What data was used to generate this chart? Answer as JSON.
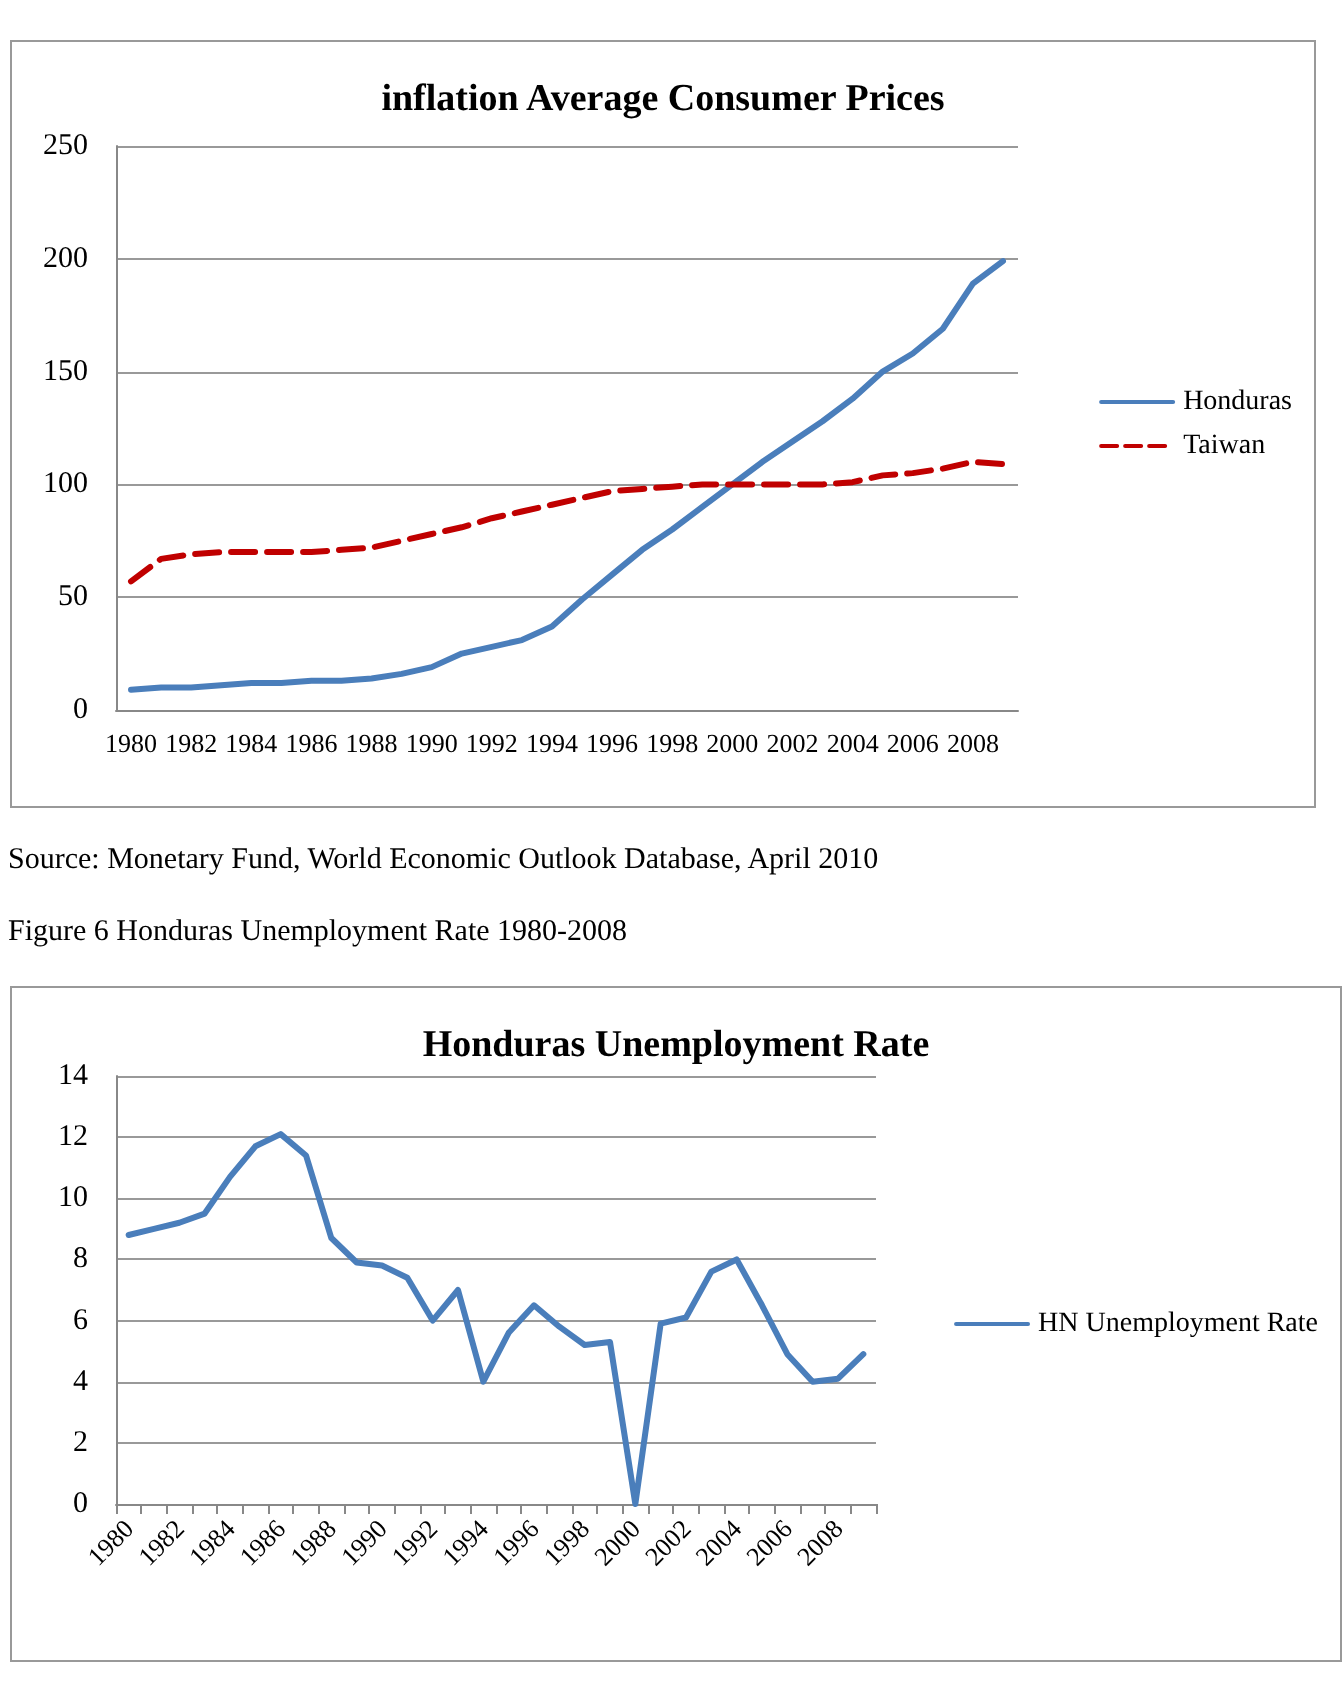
{
  "chart_data": [
    {
      "type": "line",
      "title": "inflation Average Consumer Prices",
      "categories": [
        "1980",
        null,
        "1982",
        null,
        "1984",
        null,
        "1986",
        null,
        "1988",
        null,
        "1990",
        null,
        "1992",
        null,
        "1994",
        null,
        "1996",
        null,
        "1998",
        null,
        "2000",
        null,
        "2002",
        null,
        "2004",
        null,
        "2006",
        null,
        "2008",
        null
      ],
      "series": [
        {
          "name": "Honduras",
          "color": "#4a7ebb",
          "line_style": "solid",
          "values": [
            9,
            10,
            10,
            11,
            12,
            12,
            13,
            13,
            14,
            16,
            19,
            25,
            28,
            31,
            37,
            49,
            60,
            71,
            80,
            90,
            100,
            110,
            119,
            128,
            138,
            150,
            158,
            169,
            189,
            199
          ]
        },
        {
          "name": "Taiwan",
          "color": "#c00000",
          "line_style": "dashed",
          "values": [
            57,
            67,
            69,
            70,
            70,
            70,
            70,
            71,
            72,
            75,
            78,
            81,
            85,
            88,
            91,
            94,
            97,
            98,
            99,
            100,
            100,
            100,
            100,
            100,
            101,
            104,
            105,
            107,
            110,
            109
          ]
        }
      ],
      "ylim": [
        0,
        250
      ],
      "yticks": [
        0,
        50,
        100,
        150,
        200,
        250
      ],
      "grid": "y",
      "legend": "right",
      "marker": "none",
      "annotations": [
        "Source: Monetary Fund, World Economic Outlook Database, April 2010"
      ]
    },
    {
      "type": "line",
      "title": "Honduras Unemployment Rate",
      "categories": [
        "1980",
        null,
        "1982",
        null,
        "1984",
        null,
        "1986",
        null,
        "1988",
        null,
        "1990",
        null,
        "1992",
        null,
        "1994",
        null,
        "1996",
        null,
        "1998",
        null,
        "2000",
        null,
        "2002",
        null,
        "2004",
        null,
        "2006",
        null,
        "2008",
        null
      ],
      "series": [
        {
          "name": "HN Unemployment Rate",
          "color": "#4a7ebb",
          "values": [
            8.8,
            9.0,
            9.2,
            9.5,
            10.7,
            11.7,
            12.1,
            11.4,
            8.7,
            7.9,
            7.8,
            7.4,
            6.0,
            7.0,
            4.0,
            5.6,
            6.5,
            5.8,
            5.2,
            5.3,
            0,
            5.9,
            6.1,
            7.6,
            8.0,
            6.5,
            4.9,
            4.0,
            4.1,
            4.9
          ]
        }
      ],
      "ylim": [
        0,
        14
      ],
      "yticks": [
        0,
        2,
        4,
        6,
        8,
        10,
        12,
        14
      ],
      "grid": "y",
      "legend": "right",
      "marker": "none",
      "annotations": [
        "Figure 6 Honduras Unemployment Rate 1980-2008"
      ]
    }
  ]
}
